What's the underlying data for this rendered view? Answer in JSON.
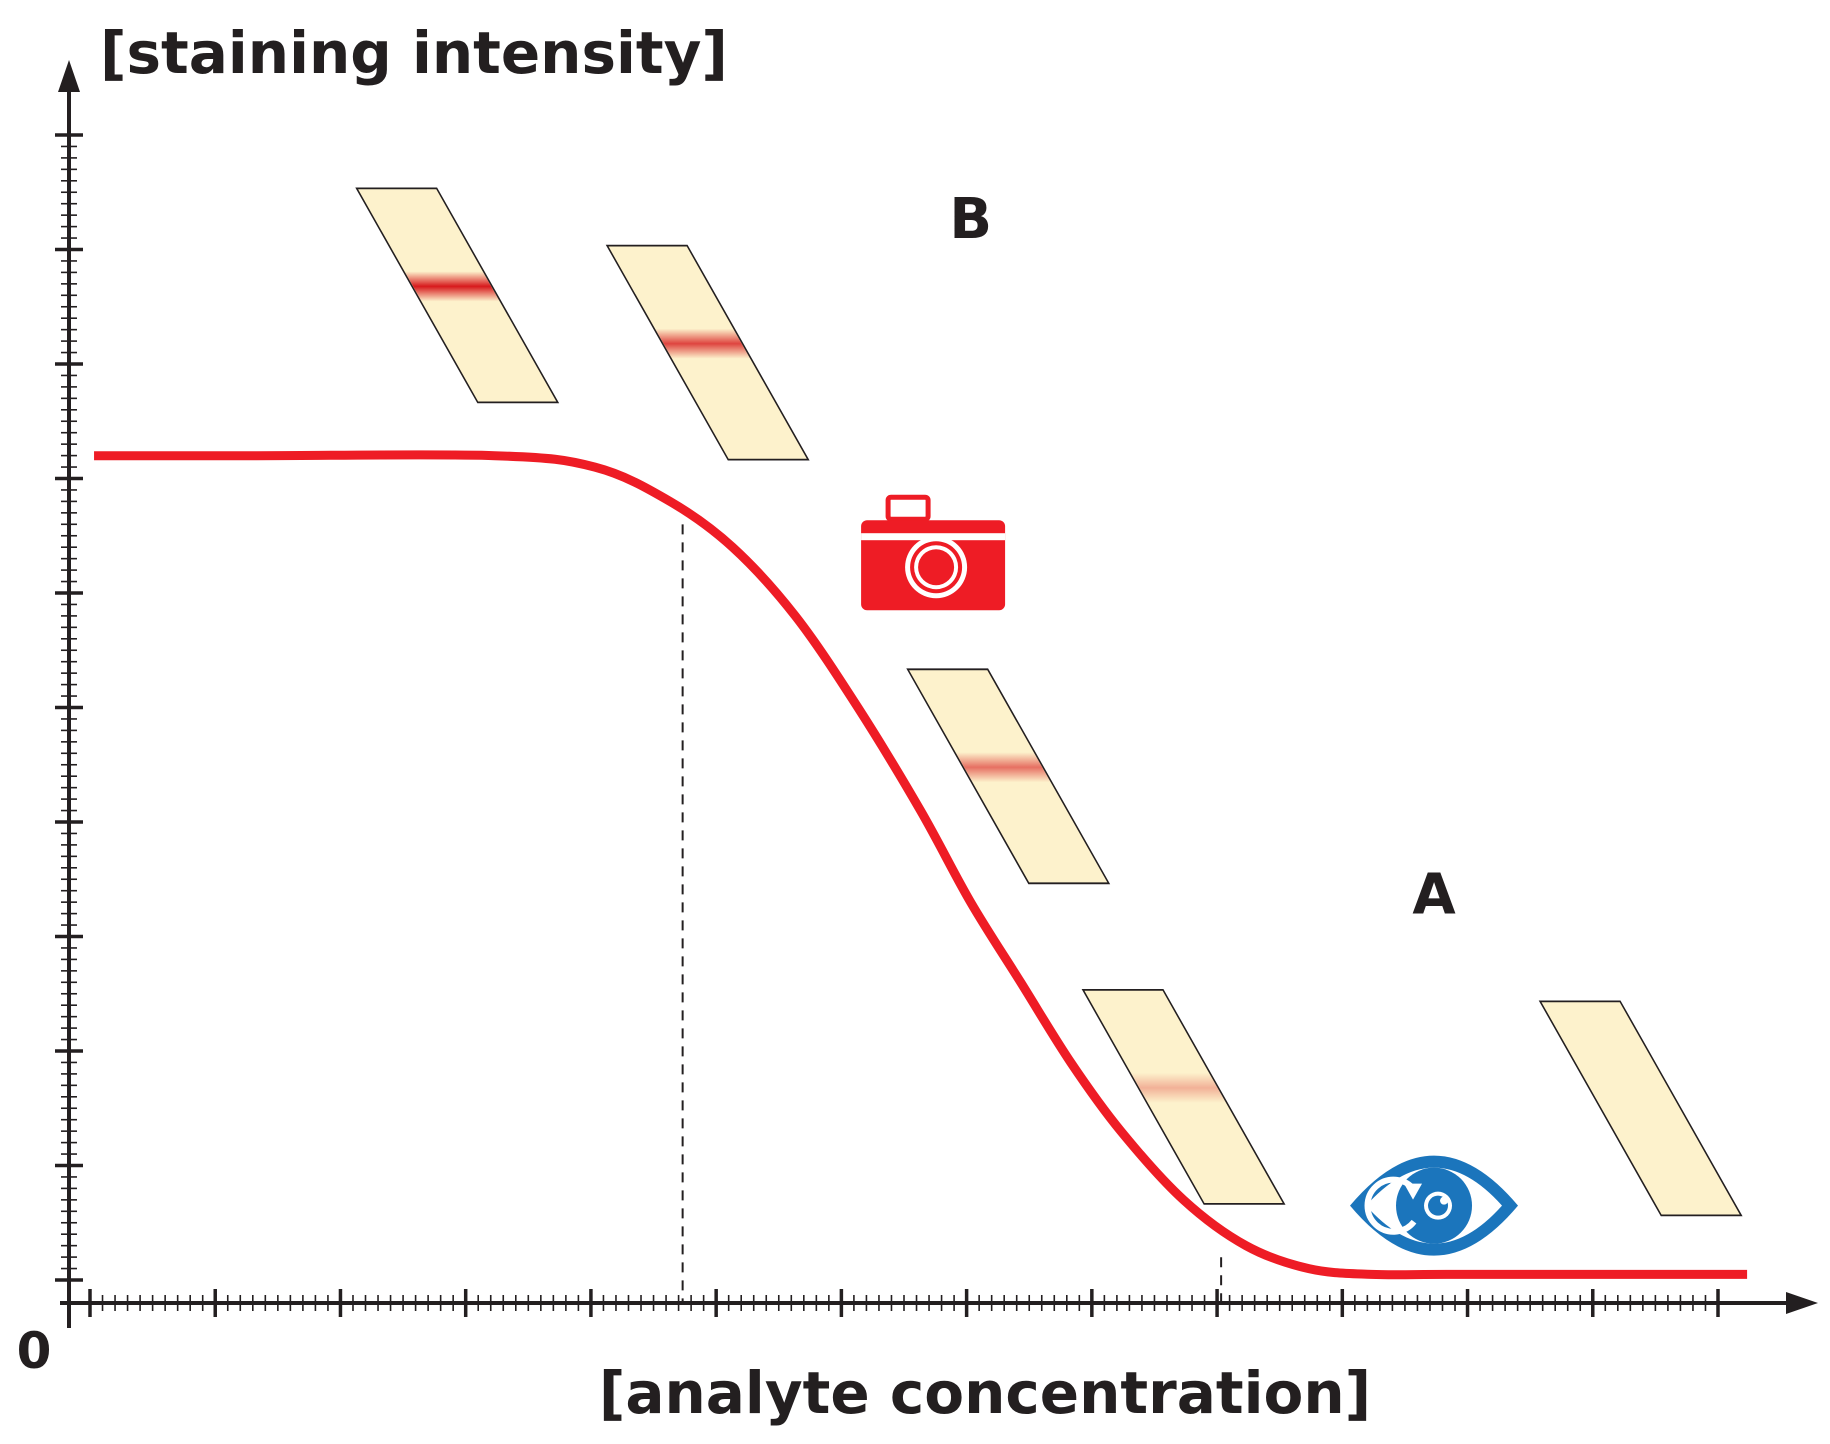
{
  "chart_data": {
    "type": "line",
    "ylabel": "[staining intensity]",
    "xlabel": "[analyte concentration]",
    "origin_label": "0",
    "grid": false,
    "xlim": [
      0,
      13
    ],
    "ylim": [
      0,
      10
    ],
    "series": [
      {
        "color": "#ee1c25",
        "x": [
          0.2,
          1.5,
          3.4,
          4.2,
          4.8,
          5.3,
          5.8,
          6.3,
          6.8,
          7.2,
          7.6,
          8.0,
          8.4,
          8.9,
          9.4,
          9.9,
          10.4,
          11.0,
          12.0,
          13.4
        ],
        "y": [
          7.4,
          7.4,
          7.4,
          7.3,
          7.0,
          6.6,
          6.0,
          5.2,
          4.3,
          3.5,
          2.8,
          2.1,
          1.5,
          0.9,
          0.5,
          0.3,
          0.25,
          0.25,
          0.25,
          0.25
        ]
      }
    ],
    "reference_lines": [
      {
        "x": 4.9,
        "y": 6.8,
        "style": "dashed"
      },
      {
        "x": 9.2,
        "y": 0.4,
        "style": "dashed"
      }
    ],
    "annotations": [
      {
        "text": "B",
        "x": 7.2,
        "y": 9.3
      },
      {
        "text": "A",
        "x": 10.9,
        "y": 3.4
      }
    ],
    "strips": [
      {
        "x": 3.1,
        "y": 8.8,
        "band": 1.0
      },
      {
        "x": 5.1,
        "y": 8.3,
        "band": 0.8
      },
      {
        "x": 7.5,
        "y": 4.6,
        "band": 0.6
      },
      {
        "x": 8.9,
        "y": 1.8,
        "band": 0.3
      },
      {
        "x": 12.55,
        "y": 1.7,
        "band": 0
      }
    ],
    "icons": [
      {
        "name": "camera-icon",
        "color": "#ee1c25",
        "x": 6.9,
        "y": 6.4
      },
      {
        "name": "eye-icon",
        "color": "#1b75bc",
        "x": 10.9,
        "y": 0.85
      }
    ]
  }
}
